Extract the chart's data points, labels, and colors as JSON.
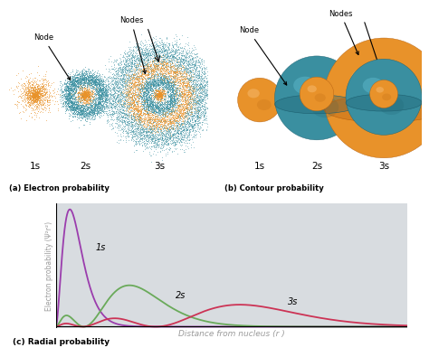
{
  "bg_color": "#ffffff",
  "teal_color": "#3a8fa0",
  "teal_dark": "#1d6070",
  "teal_light": "#5ab5c8",
  "orange_color": "#e8922a",
  "orange_dark": "#b56010",
  "orange_light": "#f5b86a",
  "purple_color": "#9b3dad",
  "green_color": "#6aaa5a",
  "red_color": "#cc3355",
  "plot_bg": "#d8dce0",
  "label_a": "(a) Electron probability",
  "label_b": "(b) Contour probability",
  "label_c": "(c) Radial probability",
  "ylabel": "Electron probability (Ψ²r²)",
  "xlabel": "Distance from nucleus (r )",
  "axis_color": "#9b9b9b",
  "node_label": "Node",
  "nodes_label": "Nodes"
}
